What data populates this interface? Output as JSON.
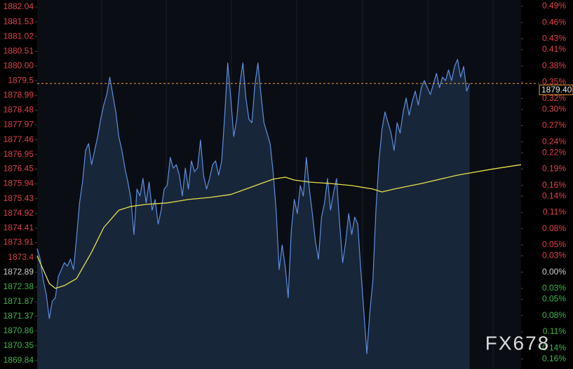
{
  "chart_data": {
    "type": "line",
    "watermark": "FX678",
    "up_color": "#e0424a",
    "down_color": "#3fb54c",
    "flat_color": "#cfcfcf",
    "xlim": [
      0,
      160
    ],
    "ylim": [
      1869.84,
      1882.04
    ],
    "yticks": [
      1882.04,
      1881.53,
      1881.02,
      1880.51,
      {
        "value": 1880,
        "label": "1880.00"
      },
      1879.5,
      1878.99,
      1878.48,
      1877.97,
      1877.46,
      1876.95,
      1876.45,
      1875.94,
      1875.43,
      1874.92,
      1874.41,
      1873.91,
      1873.4,
      1872.89,
      1872.38,
      1871.87,
      1871.37,
      1870.86,
      1870.35,
      1869.84
    ],
    "y2lim": [
      -0.163,
      0.4886
    ],
    "y2ticks": [
      {
        "value": 0.49,
        "label": "0.49%"
      },
      {
        "value": 0.46,
        "label": "0.46%"
      },
      {
        "value": 0.43,
        "label": "0.43%"
      },
      {
        "value": 0.41,
        "label": "0.41%"
      },
      {
        "value": 0.38,
        "label": "0.38%"
      },
      {
        "value": 0.35,
        "label": "0.35%"
      },
      {
        "value": 0.32,
        "label": "0.32%"
      },
      {
        "value": 0.3,
        "label": "0.30%"
      },
      {
        "value": 0.27,
        "label": "0.27%"
      },
      {
        "value": 0.24,
        "label": "0.24%"
      },
      {
        "value": 0.22,
        "label": "0.22%"
      },
      {
        "value": 0.19,
        "label": "0.19%"
      },
      {
        "value": 0.16,
        "label": "0.16%"
      },
      {
        "value": 0.14,
        "label": "0.14%"
      },
      {
        "value": 0.11,
        "label": "0.11%"
      },
      {
        "value": 0.08,
        "label": "0.08%"
      },
      {
        "value": 0.05,
        "label": "0.05%"
      },
      {
        "value": 0.03,
        "label": "0.03%"
      },
      {
        "value": 0,
        "label": "0.00%"
      },
      {
        "value": -0.03,
        "label": "0.03%"
      },
      {
        "value": -0.05,
        "label": "0.05%"
      },
      {
        "value": -0.08,
        "label": "0.08%"
      },
      {
        "value": -0.11,
        "label": "0.11%"
      },
      {
        "value": -0.14,
        "label": "0.14%"
      },
      {
        "value": -0.16,
        "label": "0.16%"
      }
    ],
    "last_price": {
      "value": 1879.4,
      "label": "1879.40"
    },
    "last_price_color": "#f0a040",
    "area_color": "#18263a",
    "series": [
      {
        "color": "#5b8fe0",
        "values": [
          1873.71,
          1873.34,
          1872.62,
          1872.14,
          1871.29,
          1871.89,
          1872.01,
          1872.74,
          1872.98,
          1873.22,
          1873.1,
          1873.34,
          1872.98,
          1874.07,
          1875.28,
          1876.0,
          1877.09,
          1877.33,
          1876.6,
          1877.09,
          1877.57,
          1878.17,
          1878.66,
          1879.02,
          1879.62,
          1879.02,
          1878.42,
          1877.57,
          1877.09,
          1876.48,
          1876.0,
          1875.4,
          1874.19,
          1875.76,
          1875.52,
          1876.12,
          1875.28,
          1876.0,
          1875.03,
          1875.4,
          1874.55,
          1875.03,
          1875.76,
          1875.88,
          1876.85,
          1876.48,
          1876.6,
          1876.24,
          1875.52,
          1876.48,
          1875.76,
          1876.73,
          1876.36,
          1876.48,
          1877.45,
          1876.24,
          1875.76,
          1876.12,
          1876.6,
          1876.73,
          1876.24,
          1876.73,
          1878.3,
          1880.11,
          1878.9,
          1877.57,
          1878.17,
          1879.38,
          1880.11,
          1878.9,
          1878.17,
          1878.05,
          1879.38,
          1880.11,
          1879.02,
          1878.05,
          1877.69,
          1877.33,
          1876.36,
          1875.03,
          1872.98,
          1873.83,
          1873.1,
          1872.01,
          1874.31,
          1875.4,
          1874.91,
          1875.88,
          1875.52,
          1876.85,
          1875.76,
          1874.91,
          1873.95,
          1873.34,
          1874.79,
          1875.28,
          1876.12,
          1875.03,
          1875.64,
          1876.12,
          1874.55,
          1873.22,
          1873.95,
          1874.91,
          1874.19,
          1874.79,
          1874.55,
          1872.98,
          1871.53,
          1870.08,
          1871.53,
          1872.62,
          1875.03,
          1876.73,
          1877.81,
          1878.42,
          1878.05,
          1877.69,
          1877.09,
          1878.05,
          1877.69,
          1878.42,
          1878.9,
          1878.3,
          1878.78,
          1879.14,
          1878.66,
          1879.26,
          1879.5,
          1879.26,
          1879.02,
          1879.38,
          1879.75,
          1879.26,
          1879.62,
          1879.5,
          1879.87,
          1879.5,
          1879.99,
          1880.23,
          1879.62,
          1879.99,
          1879.14,
          1879.4
        ]
      },
      {
        "color": "#e8e04a",
        "x": [
          0,
          2,
          4,
          6,
          9,
          13,
          18,
          22,
          27,
          31,
          36,
          43,
          50,
          57,
          64,
          69,
          74,
          78,
          82,
          85,
          90,
          97,
          104,
          111,
          114,
          118,
          127,
          139,
          150,
          160
        ],
        "values": [
          1873.46,
          1872.98,
          1872.5,
          1872.33,
          1872.43,
          1872.67,
          1873.58,
          1874.43,
          1875.03,
          1875.16,
          1875.23,
          1875.28,
          1875.4,
          1875.47,
          1875.57,
          1875.76,
          1875.95,
          1876.1,
          1876.17,
          1876.07,
          1876.0,
          1875.95,
          1875.88,
          1875.76,
          1875.66,
          1875.76,
          1875.95,
          1876.24,
          1876.44,
          1876.6
        ]
      }
    ]
  }
}
